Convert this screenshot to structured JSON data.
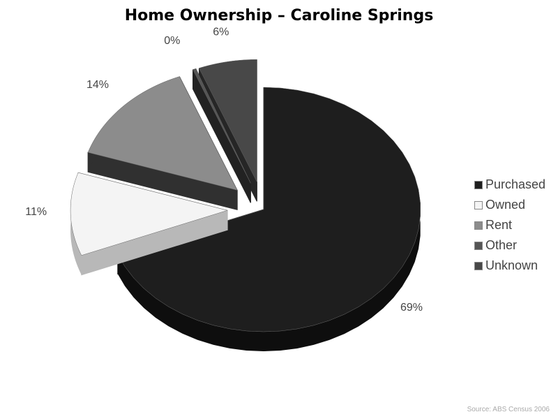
{
  "chart_data": {
    "type": "pie",
    "title": "Home Ownership – Caroline Springs",
    "categories": [
      "Purchased",
      "Owned",
      "Rent",
      "Other",
      "Unknown"
    ],
    "values": [
      69,
      11,
      14,
      0,
      6
    ],
    "data_labels": [
      "69%",
      "11%",
      "14%",
      "0%",
      "6%"
    ],
    "colors": [
      "#1e1e1e",
      "#f4f4f4",
      "#8c8c8c",
      "#555555",
      "#484848"
    ],
    "side_colors": [
      "#0e0e0e",
      "#b8b8b8",
      "#303030",
      "#222222",
      "#262626"
    ],
    "exploded": [
      false,
      true,
      true,
      true,
      true
    ],
    "style": "3d-exploded",
    "legend_position": "right",
    "source": "Source: ABS Census 2006"
  }
}
